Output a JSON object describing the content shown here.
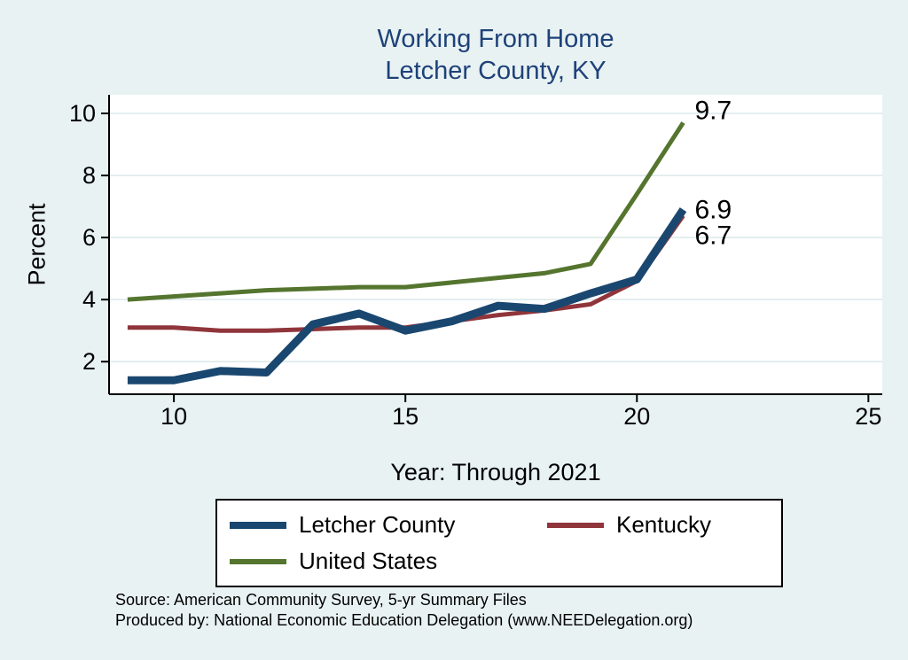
{
  "title": {
    "line1": "Working From Home",
    "line2": "Letcher County, KY"
  },
  "colors": {
    "background": "#e9f2f3",
    "plot_background": "#ffffff",
    "title": "#1e4279",
    "axis": "#000000",
    "grid": "#dce8ea"
  },
  "chart_data": {
    "type": "line",
    "title": "Working From Home - Letcher County, KY",
    "xlabel": "Year: Through 2021",
    "ylabel": "Percent",
    "x": [
      9,
      10,
      11,
      12,
      13,
      14,
      15,
      16,
      17,
      18,
      19,
      20,
      21
    ],
    "x_ticks": [
      10,
      15,
      20,
      25
    ],
    "y_ticks": [
      2,
      4,
      6,
      8,
      10
    ],
    "xlim": [
      8.6,
      25.3
    ],
    "ylim": [
      0.95,
      10.6
    ],
    "grid": true,
    "legend_position": "bottom",
    "series": [
      {
        "name": "Letcher County",
        "color": "#1a476f",
        "line_width": 9,
        "values": [
          1.4,
          1.4,
          1.7,
          1.65,
          3.2,
          3.55,
          3.0,
          3.3,
          3.8,
          3.7,
          4.2,
          4.65,
          6.9
        ],
        "end_label": "6.9",
        "end_label_dy": 10
      },
      {
        "name": "Kentucky",
        "color": "#90353b",
        "line_width": 5,
        "values": [
          3.1,
          3.1,
          3.0,
          3.0,
          3.05,
          3.1,
          3.1,
          3.3,
          3.5,
          3.65,
          3.85,
          4.6,
          6.7
        ],
        "end_label": "6.7",
        "end_label_dy": 32
      },
      {
        "name": "United States",
        "color": "#55752f",
        "line_width": 5,
        "values": [
          4.0,
          4.1,
          4.2,
          4.3,
          4.35,
          4.4,
          4.4,
          4.55,
          4.7,
          4.85,
          5.15,
          7.4,
          9.7
        ],
        "end_label": "9.7",
        "end_label_dy": -4
      }
    ]
  },
  "source": {
    "line1": "Source: American Community Survey, 5-yr Summary Files",
    "line2": "Produced by: National Economic Education Delegation (www.NEEDelegation.org)"
  }
}
